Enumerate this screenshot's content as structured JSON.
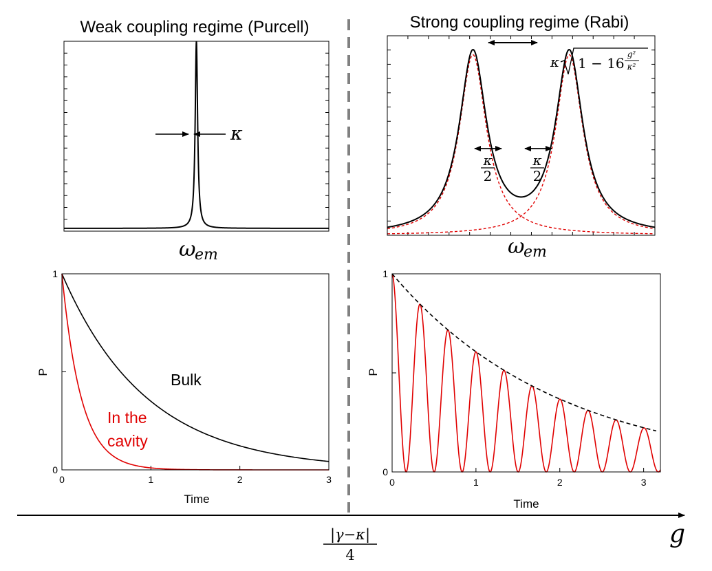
{
  "titles": {
    "weak": "Weak coupling regime (Purcell)",
    "strong": "Strong coupling regime (Rabi)"
  },
  "spectrum_labels": {
    "omega_symbol": "ω",
    "omega_subscript": "em",
    "kappa": "κ",
    "half_kappa_num": "κ",
    "half_kappa_den": "2",
    "splitting_prefix": "κ",
    "splitting_body": "1 − 16",
    "splitting_frac_num": "g²",
    "splitting_frac_den": "κ²"
  },
  "bottom_axis": {
    "threshold_num": "|γ−κ|",
    "threshold_den": "4",
    "variable": "g"
  },
  "colors": {
    "primary": "#000000",
    "cavity": "#e00000",
    "divider": "#808080"
  },
  "chart_data": [
    {
      "id": "weak-spectrum",
      "type": "line",
      "title": "Weak coupling regime (Purcell)",
      "xlabel": "ω_em",
      "ylabel": "",
      "series": [
        {
          "kind": "lorentzian",
          "center": 0,
          "halfwidth": 0.0055,
          "color": "#000000"
        }
      ],
      "xlim": [
        -0.5,
        0.5
      ],
      "ylim": [
        -0.015,
        1.0
      ],
      "annotations": [
        {
          "text": "κ",
          "meaning": "linewidth"
        }
      ],
      "grid": false
    },
    {
      "id": "strong-spectrum",
      "type": "line",
      "title": "Strong coupling regime (Rabi)",
      "xlabel": "ω_em",
      "ylabel": "",
      "series": [
        {
          "kind": "sum",
          "centers": [
            -0.18,
            0.18
          ],
          "halfwidth": 0.062,
          "color": "#000000"
        },
        {
          "kind": "lorentzian",
          "center": -0.18,
          "halfwidth": 0.062,
          "color": "#e00000",
          "dashed": true
        },
        {
          "kind": "lorentzian",
          "center": 0.18,
          "halfwidth": 0.062,
          "color": "#e00000",
          "dashed": true
        }
      ],
      "xlim": [
        -0.5,
        0.5
      ],
      "ylim": [
        0,
        1.05
      ],
      "annotations": [
        {
          "text": "κ√(1 − 16 g²/κ²)",
          "meaning": "peak splitting"
        },
        {
          "text": "κ/2",
          "meaning": "peak width"
        },
        {
          "text": "κ/2",
          "meaning": "peak width"
        }
      ],
      "grid": false
    },
    {
      "id": "weak-decay",
      "type": "line",
      "xlabel": "Time",
      "ylabel": "P",
      "xlim": [
        0,
        3
      ],
      "ylim": [
        0,
        1
      ],
      "xticks": [
        "0",
        "1",
        "2",
        "3"
      ],
      "yticks": [
        "0",
        "1"
      ],
      "series": [
        {
          "name": "Bulk",
          "kind": "exp",
          "rate": 1.05,
          "color": "#000000"
        },
        {
          "name": "In the cavity",
          "kind": "exp",
          "rate": 4.6,
          "color": "#e00000"
        }
      ],
      "grid": false
    },
    {
      "id": "strong-decay",
      "type": "line",
      "xlabel": "Time",
      "ylabel": "P",
      "xlim": [
        0,
        3.2
      ],
      "ylim": [
        0,
        1
      ],
      "xticks": [
        "0",
        "1",
        "2",
        "3"
      ],
      "yticks": [
        "0",
        "1"
      ],
      "series": [
        {
          "kind": "damped_cos2",
          "rate": 0.5,
          "omega_rad": 9.4,
          "color": "#e00000"
        },
        {
          "kind": "exp",
          "rate": 0.5,
          "color": "#000000",
          "dashed": true
        }
      ],
      "grid": false
    }
  ]
}
